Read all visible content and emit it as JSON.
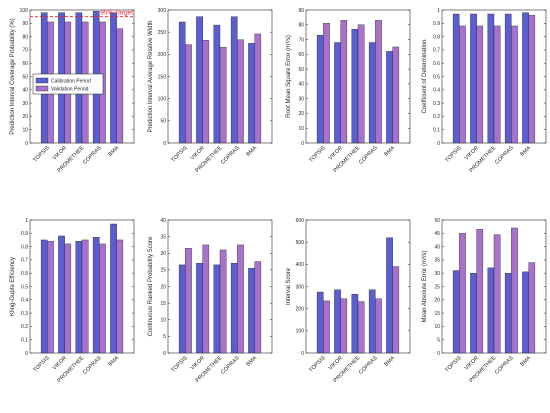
{
  "colors": {
    "calibration": "#5a5ed0",
    "validation": "#a772c9",
    "target": "#e8202a"
  },
  "legend": {
    "items": [
      "Calibration Period",
      "Validation Period"
    ]
  },
  "chart_data": [
    {
      "type": "bar",
      "ylabel": "Prediction Interval Coverage Probability (%)",
      "ylim": [
        0,
        100
      ],
      "yticks": [
        0,
        10,
        20,
        30,
        40,
        50,
        60,
        70,
        80,
        90,
        100
      ],
      "categories": [
        "TOPSIS",
        "VIKOR",
        "PROMETHEE",
        "COPRAS",
        "BMA"
      ],
      "series": [
        {
          "name": "Calibration Period",
          "values": [
            98,
            98,
            98,
            99,
            98
          ]
        },
        {
          "name": "Validation Period",
          "values": [
            91,
            91,
            91,
            91,
            86
          ]
        }
      ],
      "target": {
        "value": 95,
        "label": "95% Target"
      },
      "legend": "upper-left"
    },
    {
      "type": "bar",
      "ylabel": "Prediction Interval Average Relative Width",
      "ylim": [
        0,
        300
      ],
      "yticks": [
        0,
        50,
        100,
        150,
        200,
        250,
        300
      ],
      "categories": [
        "TOPSIS",
        "VIKOR",
        "PROMETHEE",
        "COPRAS",
        "BMA"
      ],
      "series": [
        {
          "name": "Calibration Period",
          "values": [
            273,
            285,
            266,
            285,
            225
          ]
        },
        {
          "name": "Validation Period",
          "values": [
            222,
            232,
            216,
            233,
            246
          ]
        }
      ]
    },
    {
      "type": "bar",
      "ylabel": "Root Mean Square Error (m³/s)",
      "ylim": [
        0,
        90
      ],
      "yticks": [
        0,
        10,
        20,
        30,
        40,
        50,
        60,
        70,
        80,
        90
      ],
      "categories": [
        "TOPSIS",
        "VIKOR",
        "PROMETHEE",
        "COPRAS",
        "BMA"
      ],
      "series": [
        {
          "name": "Calibration Period",
          "values": [
            73,
            68,
            77,
            68,
            62
          ]
        },
        {
          "name": "Validation Period",
          "values": [
            81,
            83,
            80,
            83,
            65
          ]
        }
      ]
    },
    {
      "type": "bar",
      "ylabel": "Coefficient of Determination",
      "ylim": [
        0,
        1
      ],
      "yticks": [
        0,
        0.1,
        0.2,
        0.3,
        0.4,
        0.5,
        0.6,
        0.7,
        0.8,
        0.9,
        1
      ],
      "categories": [
        "TOPSIS",
        "VIKOR",
        "PROMETHEE",
        "COPRAS",
        "BMA"
      ],
      "series": [
        {
          "name": "Calibration Period",
          "values": [
            0.97,
            0.97,
            0.97,
            0.97,
            0.98
          ]
        },
        {
          "name": "Validation Period",
          "values": [
            0.88,
            0.88,
            0.88,
            0.88,
            0.96
          ]
        }
      ]
    },
    {
      "type": "bar",
      "ylabel": "Kling-Gupta Efficiency",
      "ylim": [
        0,
        1
      ],
      "yticks": [
        0,
        0.1,
        0.2,
        0.3,
        0.4,
        0.5,
        0.6,
        0.7,
        0.8,
        0.9,
        1
      ],
      "categories": [
        "TOPSIS",
        "VIKOR",
        "PROMETHEE",
        "COPRAS",
        "BMA"
      ],
      "series": [
        {
          "name": "Calibration Period",
          "values": [
            0.85,
            0.88,
            0.84,
            0.87,
            0.97
          ]
        },
        {
          "name": "Validation Period",
          "values": [
            0.84,
            0.82,
            0.85,
            0.82,
            0.85
          ]
        }
      ]
    },
    {
      "type": "bar",
      "ylabel": "Continuous Ranked Probability Score",
      "ylim": [
        0,
        40
      ],
      "yticks": [
        0,
        5,
        10,
        15,
        20,
        25,
        30,
        35,
        40
      ],
      "categories": [
        "TOPSIS",
        "VIKOR",
        "PROMETHEE",
        "COPRAS",
        "BMA"
      ],
      "series": [
        {
          "name": "Calibration Period",
          "values": [
            26.5,
            27,
            26.5,
            27,
            25.5
          ]
        },
        {
          "name": "Validation Period",
          "values": [
            31.5,
            32.5,
            31,
            32.5,
            27.5
          ]
        }
      ]
    },
    {
      "type": "bar",
      "ylabel": "Interval Score",
      "ylim": [
        0,
        600
      ],
      "yticks": [
        0,
        100,
        200,
        300,
        400,
        500,
        600
      ],
      "categories": [
        "TOPSIS",
        "VIKOR",
        "PROMETHEE",
        "COPRAS",
        "BMA"
      ],
      "series": [
        {
          "name": "Calibration Period",
          "values": [
            275,
            285,
            265,
            285,
            520
          ]
        },
        {
          "name": "Validation Period",
          "values": [
            235,
            245,
            232,
            245,
            390
          ]
        }
      ]
    },
    {
      "type": "bar",
      "ylabel": "Mean Absolute Error (m³/s)",
      "ylim": [
        0,
        50
      ],
      "yticks": [
        0,
        5,
        10,
        15,
        20,
        25,
        30,
        35,
        40,
        45,
        50
      ],
      "categories": [
        "TOPSIS",
        "VIKOR",
        "PROMETHEE",
        "COPRAS",
        "BMA"
      ],
      "series": [
        {
          "name": "Calibration Period",
          "values": [
            31,
            30,
            32,
            30,
            30.5
          ]
        },
        {
          "name": "Validation Period",
          "values": [
            45,
            46.5,
            44.5,
            47,
            34
          ]
        }
      ]
    }
  ]
}
